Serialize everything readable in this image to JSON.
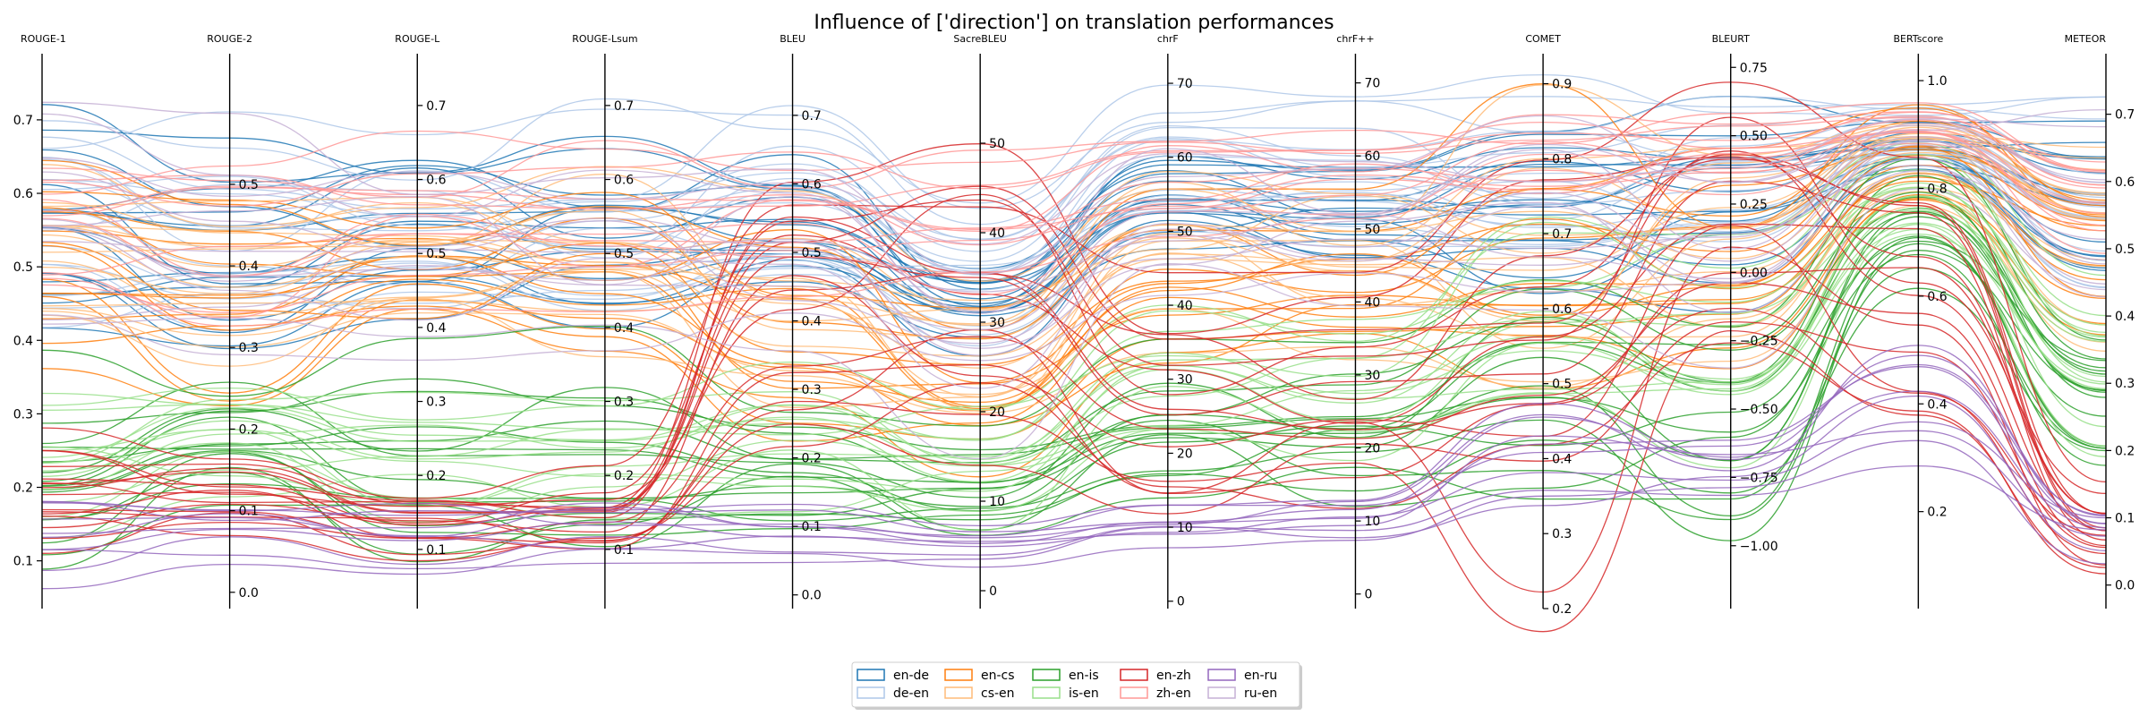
{
  "chart_data": {
    "type": "parallel-coordinates",
    "title": "Influence of ['direction'] on translation performances",
    "axes": [
      {
        "name": "ROUGE-1",
        "range": [
          0.035,
          0.79
        ],
        "ticks": [
          0.1,
          0.2,
          0.3,
          0.4,
          0.5,
          0.6,
          0.7
        ],
        "tick_labels": [
          "0.1",
          "0.2",
          "0.3",
          "0.4",
          "0.5",
          "0.6",
          "0.7"
        ],
        "tick_side": "left"
      },
      {
        "name": "ROUGE-2",
        "range": [
          -0.02,
          0.66
        ],
        "ticks": [
          0.0,
          0.1,
          0.2,
          0.3,
          0.4,
          0.5
        ],
        "tick_labels": [
          "0.0",
          "0.1",
          "0.2",
          "0.3",
          "0.4",
          "0.5"
        ],
        "tick_side": "right"
      },
      {
        "name": "ROUGE-L",
        "range": [
          0.02,
          0.77
        ],
        "ticks": [
          0.1,
          0.2,
          0.3,
          0.4,
          0.5,
          0.6,
          0.7
        ],
        "tick_labels": [
          "0.1",
          "0.2",
          "0.3",
          "0.4",
          "0.5",
          "0.6",
          "0.7"
        ],
        "tick_side": "right"
      },
      {
        "name": "ROUGE-Lsum",
        "range": [
          0.02,
          0.77
        ],
        "ticks": [
          0.1,
          0.2,
          0.3,
          0.4,
          0.5,
          0.6,
          0.7
        ],
        "tick_labels": [
          "0.1",
          "0.2",
          "0.3",
          "0.4",
          "0.5",
          "0.6",
          "0.7"
        ],
        "tick_side": "right"
      },
      {
        "name": "BLEU",
        "range": [
          -0.02,
          0.79
        ],
        "ticks": [
          0.0,
          0.1,
          0.2,
          0.3,
          0.4,
          0.5,
          0.6,
          0.7
        ],
        "tick_labels": [
          "0.0",
          "0.1",
          "0.2",
          "0.3",
          "0.4",
          "0.5",
          "0.6",
          "0.7"
        ],
        "tick_side": "right"
      },
      {
        "name": "SacreBLEU",
        "range": [
          -2,
          60
        ],
        "ticks": [
          0,
          10,
          20,
          30,
          40,
          50
        ],
        "tick_labels": [
          "0",
          "10",
          "20",
          "30",
          "40",
          "50"
        ],
        "tick_side": "right"
      },
      {
        "name": "chrF",
        "range": [
          -1,
          74
        ],
        "ticks": [
          0,
          10,
          20,
          30,
          40,
          50,
          60,
          70
        ],
        "tick_labels": [
          "0",
          "10",
          "20",
          "30",
          "40",
          "50",
          "60",
          "70"
        ],
        "tick_side": "right"
      },
      {
        "name": "chrF++",
        "range": [
          -2,
          74
        ],
        "ticks": [
          0,
          10,
          20,
          30,
          40,
          50,
          60,
          70
        ],
        "tick_labels": [
          "0",
          "10",
          "20",
          "30",
          "40",
          "50",
          "60",
          "70"
        ],
        "tick_side": "right"
      },
      {
        "name": "COMET",
        "range": [
          0.2,
          0.94
        ],
        "ticks": [
          0.2,
          0.3,
          0.4,
          0.5,
          0.6,
          0.7,
          0.8,
          0.9
        ],
        "tick_labels": [
          "0.2",
          "0.3",
          "0.4",
          "0.5",
          "0.6",
          "0.7",
          "0.8",
          "0.9"
        ],
        "tick_side": "right"
      },
      {
        "name": "BLEURT",
        "range": [
          -1.23,
          0.8
        ],
        "ticks": [
          -1.0,
          -0.75,
          -0.5,
          -0.25,
          0.0,
          0.25,
          0.5,
          0.75
        ],
        "tick_labels": [
          "−1.00",
          "−0.75",
          "−0.50",
          "−0.25",
          "0.00",
          "0.25",
          "0.50",
          "0.75"
        ],
        "tick_side": "right"
      },
      {
        "name": "BERTscore",
        "range": [
          0.02,
          1.05
        ],
        "ticks": [
          0.2,
          0.4,
          0.6,
          0.8,
          1.0
        ],
        "tick_labels": [
          "0.2",
          "0.4",
          "0.6",
          "0.8",
          "1.0"
        ],
        "tick_side": "right"
      },
      {
        "name": "METEOR",
        "range": [
          -0.035,
          0.79
        ],
        "ticks": [
          0.0,
          0.1,
          0.2,
          0.3,
          0.4,
          0.5,
          0.6,
          0.7
        ],
        "tick_labels": [
          "0.0",
          "0.1",
          "0.2",
          "0.3",
          "0.4",
          "0.5",
          "0.6",
          "0.7"
        ],
        "tick_side": "right"
      }
    ],
    "series": [
      {
        "name": "en-de",
        "color": "#1f77b4",
        "count": 16,
        "values_low": [
          0.36,
          0.22,
          0.34,
          0.34,
          0.36,
          24,
          44,
          42,
          0.55,
          -0.2,
          0.8,
          0.38
        ],
        "values_high": [
          0.76,
          0.6,
          0.7,
          0.7,
          0.72,
          40,
          66,
          64,
          0.92,
          0.7,
          0.96,
          0.74
        ]
      },
      {
        "name": "de-en",
        "color": "#aec7e8",
        "count": 16,
        "values_low": [
          0.4,
          0.24,
          0.36,
          0.36,
          0.4,
          26,
          48,
          46,
          0.6,
          0.0,
          0.82,
          0.42
        ],
        "values_high": [
          0.78,
          0.62,
          0.72,
          0.72,
          0.75,
          46,
          70,
          70,
          0.94,
          0.75,
          0.98,
          0.76
        ]
      },
      {
        "name": "en-cs",
        "color": "#ff7f0e",
        "count": 14,
        "values_low": [
          0.3,
          0.15,
          0.3,
          0.3,
          0.12,
          8,
          28,
          26,
          0.3,
          -0.55,
          0.72,
          0.3
        ],
        "values_high": [
          0.66,
          0.5,
          0.6,
          0.6,
          0.6,
          34,
          56,
          56,
          0.92,
          0.55,
          0.96,
          0.66
        ]
      },
      {
        "name": "cs-en",
        "color": "#ffbb78",
        "count": 14,
        "values_low": [
          0.32,
          0.16,
          0.3,
          0.3,
          0.15,
          10,
          30,
          28,
          0.32,
          -0.5,
          0.74,
          0.3
        ],
        "values_high": [
          0.7,
          0.54,
          0.64,
          0.64,
          0.62,
          38,
          62,
          60,
          0.92,
          0.6,
          0.97,
          0.7
        ]
      },
      {
        "name": "en-is",
        "color": "#2ca02c",
        "count": 16,
        "values_low": [
          0.05,
          0.04,
          0.05,
          0.05,
          0.05,
          3,
          10,
          8,
          0.3,
          -1.1,
          0.6,
          0.1
        ],
        "values_high": [
          0.45,
          0.35,
          0.42,
          0.42,
          0.38,
          22,
          40,
          40,
          0.75,
          0.05,
          0.92,
          0.5
        ]
      },
      {
        "name": "is-en",
        "color": "#98df8a",
        "count": 14,
        "values_low": [
          0.1,
          0.08,
          0.1,
          0.1,
          0.1,
          5,
          18,
          16,
          0.4,
          -0.8,
          0.66,
          0.15
        ],
        "values_high": [
          0.4,
          0.32,
          0.38,
          0.38,
          0.4,
          26,
          46,
          44,
          0.82,
          0.4,
          0.95,
          0.56
        ]
      },
      {
        "name": "en-zh",
        "color": "#d62728",
        "count": 16,
        "values_low": [
          0.1,
          0.06,
          0.08,
          0.08,
          0.2,
          12,
          10,
          10,
          0.15,
          -0.3,
          0.25,
          0.0
        ],
        "values_high": [
          0.3,
          0.18,
          0.22,
          0.22,
          0.7,
          56,
          46,
          46,
          0.9,
          0.75,
          0.95,
          0.18
        ]
      },
      {
        "name": "zh-en",
        "color": "#ff9896",
        "count": 12,
        "values_low": [
          0.4,
          0.25,
          0.38,
          0.38,
          0.4,
          28,
          46,
          46,
          0.7,
          0.2,
          0.86,
          0.45
        ],
        "values_high": [
          0.74,
          0.66,
          0.7,
          0.7,
          0.72,
          52,
          68,
          68,
          0.92,
          0.7,
          0.98,
          0.7
        ]
      },
      {
        "name": "en-ru",
        "color": "#9467bd",
        "count": 10,
        "values_low": [
          0.04,
          0.02,
          0.04,
          0.04,
          0.02,
          2,
          6,
          4,
          0.28,
          -0.95,
          0.18,
          0.02
        ],
        "values_high": [
          0.2,
          0.12,
          0.18,
          0.18,
          0.14,
          8,
          14,
          14,
          0.5,
          -0.55,
          0.6,
          0.14
        ]
      },
      {
        "name": "ru-en",
        "color": "#c5b0d5",
        "count": 12,
        "values_low": [
          0.3,
          0.2,
          0.3,
          0.3,
          0.3,
          14,
          36,
          34,
          0.55,
          -0.4,
          0.78,
          0.34
        ],
        "values_high": [
          0.76,
          0.6,
          0.72,
          0.72,
          0.7,
          42,
          64,
          64,
          0.9,
          0.6,
          0.97,
          0.74
        ]
      }
    ],
    "legend": {
      "position": "bottom-center",
      "columns": 5,
      "rows": 2
    },
    "grid": false
  }
}
